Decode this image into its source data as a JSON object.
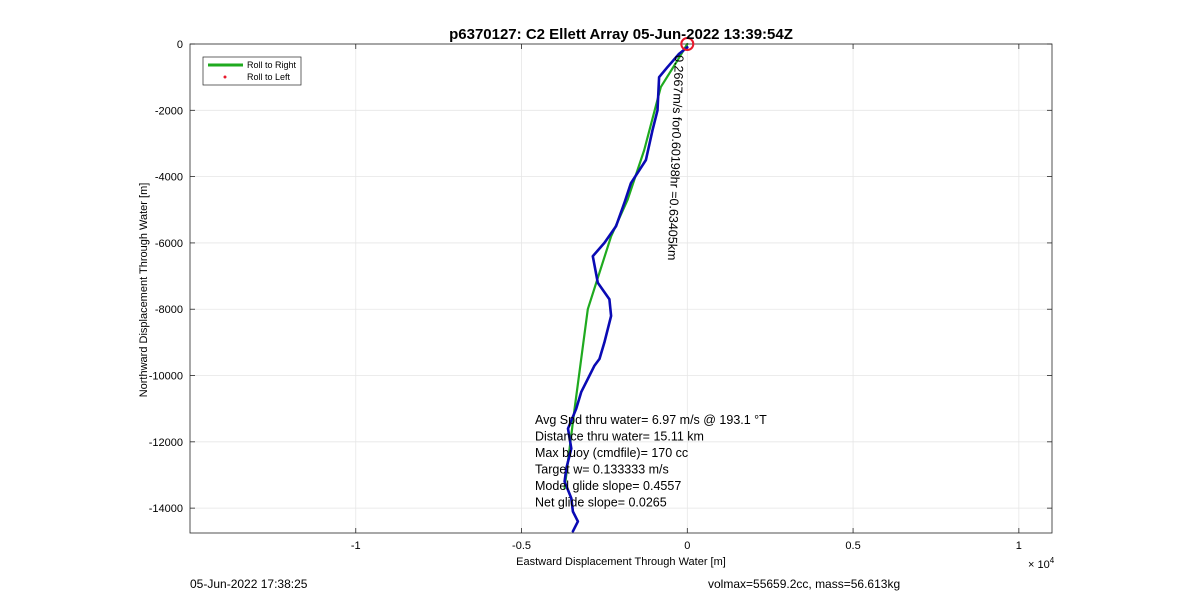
{
  "chart_data": {
    "type": "line",
    "title": "p6370127: C2 Ellett Array 05-Jun-2022 13:39:54Z",
    "xlabel": "Eastward Displacement Through Water [m]",
    "ylabel": "Northward Displacement Through Water [m]",
    "x_exponent_label": "× 10",
    "x_exponent_power": "4",
    "xlim": [
      -15000,
      11000
    ],
    "ylim": [
      -14750,
      0
    ],
    "grid": true,
    "x_ticks": [
      {
        "value": -10000,
        "label": "-1"
      },
      {
        "value": -5000,
        "label": "-0.5"
      },
      {
        "value": 0,
        "label": "0"
      },
      {
        "value": 5000,
        "label": "0.5"
      },
      {
        "value": 10000,
        "label": "1"
      }
    ],
    "y_ticks": [
      {
        "value": 0,
        "label": "0"
      },
      {
        "value": -2000,
        "label": "-2000"
      },
      {
        "value": -4000,
        "label": "-4000"
      },
      {
        "value": -6000,
        "label": "-6000"
      },
      {
        "value": -8000,
        "label": "-8000"
      },
      {
        "value": -10000,
        "label": "-10000"
      },
      {
        "value": -12000,
        "label": "-12000"
      },
      {
        "value": -14000,
        "label": "-14000"
      }
    ],
    "legend": {
      "placement": "top-left",
      "entries": [
        {
          "label": "Roll to Right",
          "color": "#1faa1f",
          "marker": "line"
        },
        {
          "label": "Roll to Left",
          "color": "#e8192c",
          "marker": "dot"
        }
      ]
    },
    "series": [
      {
        "name": "Roll to Right",
        "color": "#1faa1f",
        "x": [
          0,
          -300,
          -800,
          -1300,
          -1800,
          -2300,
          -3000,
          -3400,
          -3700
        ],
        "y": [
          0,
          -500,
          -1300,
          -3200,
          -4700,
          -5800,
          -8000,
          -11000,
          -13400
        ]
      },
      {
        "color": "#0a0ab4",
        "x": [
          0,
          -250,
          -600,
          -850,
          -900,
          -1050,
          -1250,
          -1700,
          -1900,
          -2150,
          -2500,
          -2850,
          -2700,
          -2350,
          -2300,
          -2500,
          -2650,
          -2800,
          -3200,
          -3350,
          -3600,
          -3500,
          -3650,
          -3700,
          -3500,
          -3450,
          -3300,
          -3450
        ],
        "y": [
          -100,
          -300,
          -700,
          -1000,
          -2000,
          -2600,
          -3500,
          -4200,
          -4800,
          -5500,
          -6000,
          -6400,
          -7200,
          -7700,
          -8200,
          -9000,
          -9500,
          -9700,
          -10500,
          -11000,
          -11600,
          -12200,
          -12800,
          -13200,
          -13700,
          -14100,
          -14400,
          -14700
        ]
      }
    ],
    "start_marker": {
      "x": 0,
      "y": 0,
      "color": "#e8192c"
    },
    "rotated_annotation": "0.2667m/s for0.60198hr =0.63405km",
    "stats_annotations": [
      "Avg Spd thru water=  6.97 m/s @ 193.1 °T",
      "Distance thru water= 15.11 km",
      "Max buoy (cmdfile)= 170 cc",
      "Target w= 0.133333 m/s",
      "Model glide slope= 0.4557",
      "Net glide slope= 0.0265"
    ]
  },
  "footer": {
    "left": "05-Jun-2022 17:38:25",
    "right": "volmax=55659.2cc, mass=56.613kg"
  }
}
